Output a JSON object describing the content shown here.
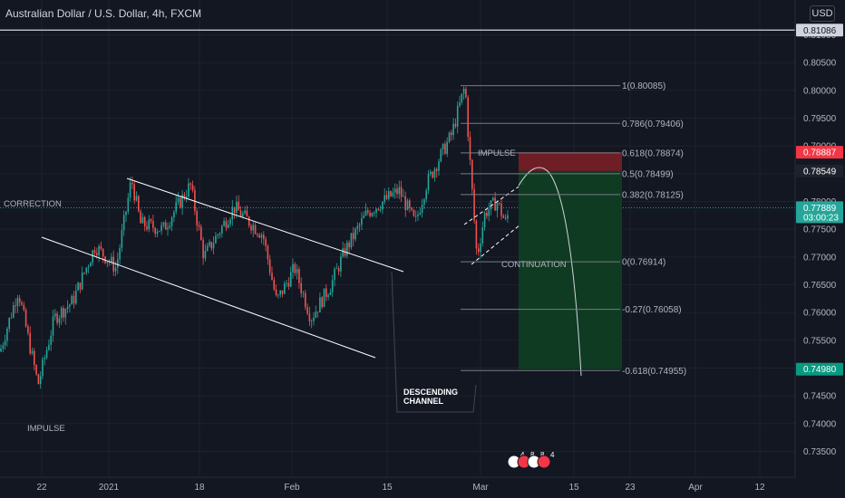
{
  "header": {
    "title": "Australian Dollar / U.S. Dollar, 4h, FXCM",
    "currency": "USD"
  },
  "colors": {
    "background": "#131722",
    "grid": "#1e222d",
    "axis_text": "#b2b5be",
    "up_candle": "#26a69a",
    "down_candle": "#ef5350",
    "channel_line": "#ffffff",
    "fib_line": "#787b86",
    "stop_zone": "#7a1f27",
    "target_zone": "#0f3d23",
    "price_line": "#26a69a",
    "red_tag": "#f23645",
    "green_tag": "#089981"
  },
  "chart_data": {
    "type": "candlestick",
    "symbol": "AUDUSD",
    "timeframe": "4h",
    "ylim": [
      0.7328,
      0.814
    ],
    "yticks": [
      0.735,
      0.74,
      0.745,
      0.75,
      0.755,
      0.76,
      0.765,
      0.77,
      0.775,
      0.78,
      0.785,
      0.79,
      0.795,
      0.8,
      0.805,
      0.81
    ],
    "ytick_labels": [
      "0.73500",
      "0.74000",
      "0.74500",
      "0.75000",
      "0.75500",
      "0.76000",
      "0.76500",
      "0.77000",
      "0.77500",
      "0.78000",
      "0.78500",
      "0.79000",
      "0.79500",
      "0.80000",
      "0.80500",
      "0.81000"
    ],
    "xtick_labels": [
      "22",
      "2021",
      "18",
      "Feb",
      "15",
      "Mar",
      "15",
      "23",
      "Apr",
      "12"
    ],
    "price_path": [
      [
        0,
        0.753
      ],
      [
        20,
        0.764
      ],
      [
        42,
        0.747
      ],
      [
        60,
        0.759
      ],
      [
        80,
        0.762
      ],
      [
        105,
        0.772
      ],
      [
        128,
        0.768
      ],
      [
        145,
        0.784
      ],
      [
        155,
        0.776
      ],
      [
        180,
        0.775
      ],
      [
        210,
        0.783
      ],
      [
        225,
        0.77
      ],
      [
        258,
        0.779
      ],
      [
        290,
        0.774
      ],
      [
        305,
        0.762
      ],
      [
        325,
        0.768
      ],
      [
        343,
        0.759
      ],
      [
        365,
        0.765
      ],
      [
        380,
        0.771
      ],
      [
        405,
        0.778
      ],
      [
        440,
        0.782
      ],
      [
        458,
        0.776
      ],
      [
        470,
        0.783
      ],
      [
        482,
        0.787
      ],
      [
        498,
        0.792
      ],
      [
        513,
        0.8009
      ],
      [
        518,
        0.788
      ],
      [
        526,
        0.77
      ],
      [
        535,
        0.778
      ],
      [
        548,
        0.78
      ],
      [
        558,
        0.776
      ],
      [
        562,
        0.779
      ]
    ],
    "last_price": "0.77889",
    "countdown": "03:00:23",
    "price_tags": [
      {
        "label": "0.81086",
        "value": 0.81086,
        "style": "white"
      },
      {
        "label": "0.78887",
        "value": 0.78887,
        "style": "red"
      },
      {
        "label": "0.78549",
        "value": 0.78549,
        "style": "dark"
      },
      {
        "label": "0.77889",
        "value": 0.77889,
        "style": "teal"
      },
      {
        "label": "0.74980",
        "value": 0.7498,
        "style": "green"
      }
    ],
    "horizontal_line": 0.81086,
    "fibonacci": [
      {
        "label": "1(0.80085)",
        "value": 0.80085
      },
      {
        "label": "0.786(0.79406)",
        "value": 0.79406
      },
      {
        "label": "0.618(0.78874)",
        "value": 0.78874
      },
      {
        "label": "0.5(0.78499)",
        "value": 0.78499
      },
      {
        "label": "0.382(0.78125)",
        "value": 0.78125
      },
      {
        "label": "0(0.76914)",
        "value": 0.76914
      },
      {
        "label": "-0.27(0.76058)",
        "value": 0.76058
      },
      {
        "label": "-0.618(0.74955)",
        "value": 0.74955
      }
    ],
    "position": {
      "stop": 0.78887,
      "entry": 0.78549,
      "target": 0.7498
    },
    "annotations": [
      "CORRECTION",
      "IMPULSE",
      "IMPULSE",
      "CONTINUATION",
      "DESCENDING CHANNEL"
    ],
    "event_badges": [
      "4",
      "8",
      "8",
      "4"
    ]
  }
}
